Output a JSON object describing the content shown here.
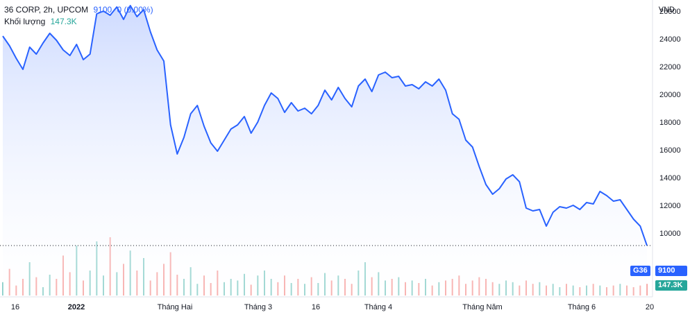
{
  "legend": {
    "symbol": "36 CORP, 2h, UPCOM",
    "last": "9100",
    "change": "0 (0.00%)",
    "volume_label": "Khối lượng",
    "volume_value": "147.3K"
  },
  "axis": {
    "unit": "VND"
  },
  "badges": {
    "ticker": "G36",
    "price": "9100",
    "volume": "147.3K"
  },
  "colors": {
    "line": "#2962ff",
    "area_top": "#c9d7ff",
    "area_bottom": "#ffffff",
    "vol_up": "#26a69a",
    "vol_down": "#ef5350",
    "grid": "#f0f3fa",
    "axis_text": "#131722"
  },
  "chart_data": {
    "type": "area",
    "title": "36 CORP, 2h, UPCOM",
    "ylabel": "VND",
    "ylim": [
      9000,
      27000
    ],
    "yticks": [
      10000,
      12000,
      14000,
      16000,
      18000,
      20000,
      22000,
      24000,
      26000
    ],
    "xticks": [
      "16",
      "2022",
      "Tháng Hai",
      "Tháng 3",
      "16",
      "Tháng 4",
      "Tháng Năm",
      "Tháng 6",
      "20"
    ],
    "last_price": 9100,
    "series": [
      {
        "values": [
          24200,
          23500,
          22600,
          21800,
          23400,
          22900,
          23700,
          24400,
          23900,
          23200,
          22800,
          23600,
          22500,
          22900,
          25800,
          26000,
          25700,
          26300,
          25400,
          26400,
          25600,
          26100,
          24500,
          23200,
          22400,
          17800,
          15700,
          16900,
          18600,
          19200,
          17700,
          16500,
          15900,
          16700,
          17500,
          17800,
          18400,
          17200,
          18000,
          19200,
          20100,
          19700,
          18700,
          19400,
          18800,
          19000,
          18600,
          19200,
          20300,
          19600,
          20500,
          19700,
          19100,
          20600,
          21100,
          20200,
          21400,
          21600,
          21200,
          21300,
          20600,
          20700,
          20400,
          20900,
          20600,
          21100,
          20300,
          18600,
          18200,
          16700,
          16200,
          14800,
          13500,
          12800,
          13200,
          13900,
          14200,
          13700,
          11800,
          11600,
          11700,
          10500,
          11500,
          11900,
          11800,
          12000,
          11700,
          12200,
          12100,
          13000,
          12700,
          12300,
          12400,
          11700,
          11000,
          10500,
          9100
        ],
        "volume": [
          16,
          32,
          12,
          20,
          40,
          22,
          10,
          25,
          20,
          48,
          28,
          60,
          18,
          30,
          65,
          24,
          70,
          28,
          38,
          54,
          30,
          45,
          18,
          28,
          38,
          52,
          25,
          20,
          34,
          14,
          24,
          15,
          30,
          16,
          20,
          18,
          26,
          13,
          24,
          30,
          20,
          16,
          24,
          15,
          20,
          14,
          22,
          15,
          27,
          18,
          24,
          20,
          14,
          30,
          40,
          22,
          28,
          18,
          20,
          22,
          16,
          18,
          15,
          20,
          12,
          16,
          18,
          20,
          24,
          14,
          18,
          22,
          20,
          16,
          14,
          18,
          16,
          12,
          18,
          14,
          16,
          12,
          14,
          10,
          14,
          12,
          10,
          12,
          14,
          12,
          10,
          12,
          14,
          12,
          10,
          12,
          14
        ]
      }
    ]
  }
}
